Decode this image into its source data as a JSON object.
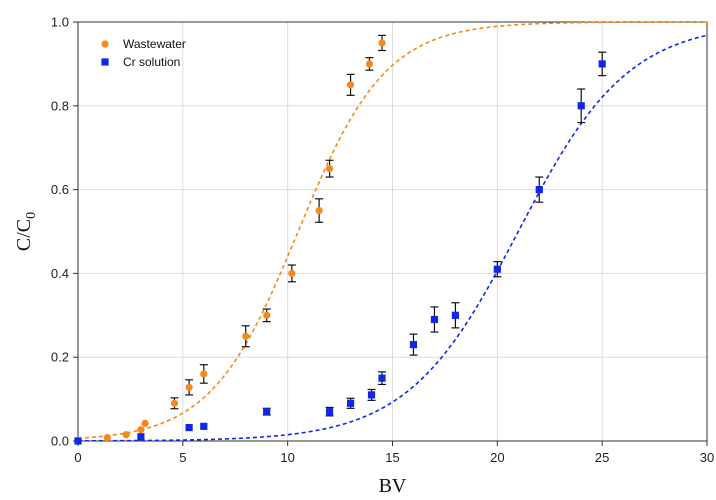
{
  "chart_data": {
    "type": "scatter",
    "title": "",
    "xlabel": "BV",
    "ylabel_main": "C/C",
    "ylabel_sub": "0",
    "xlim": [
      0,
      30
    ],
    "ylim": [
      0,
      1.0
    ],
    "x_ticks": [
      0,
      5,
      10,
      15,
      20,
      25,
      30
    ],
    "x_tick_labels": [
      "0",
      "5",
      "10",
      "15",
      "20",
      "25",
      "30"
    ],
    "y_ticks": [
      0,
      0.2,
      0.4,
      0.6,
      0.8,
      1.0
    ],
    "y_tick_labels": [
      "0.0",
      "0.2",
      "0.4",
      "0.6",
      "0.8",
      "1.0"
    ],
    "grid": true,
    "legend_position": "top-left",
    "series": [
      {
        "name": "Wastewater",
        "color": "#f5891f",
        "marker": "circle",
        "points": [
          {
            "x": 0,
            "y": 0.0,
            "err": 0
          },
          {
            "x": 1.4,
            "y": 0.008,
            "err": 0
          },
          {
            "x": 2.3,
            "y": 0.015,
            "err": 0
          },
          {
            "x": 3.0,
            "y": 0.027,
            "err": 0
          },
          {
            "x": 3.2,
            "y": 0.042,
            "err": 0
          },
          {
            "x": 4.6,
            "y": 0.09,
            "err": 0.013
          },
          {
            "x": 5.3,
            "y": 0.128,
            "err": 0.018
          },
          {
            "x": 6.0,
            "y": 0.16,
            "err": 0.022
          },
          {
            "x": 8.0,
            "y": 0.25,
            "err": 0.025
          },
          {
            "x": 9.0,
            "y": 0.3,
            "err": 0.015
          },
          {
            "x": 10.2,
            "y": 0.4,
            "err": 0.02
          },
          {
            "x": 11.5,
            "y": 0.55,
            "err": 0.028
          },
          {
            "x": 12.0,
            "y": 0.65,
            "err": 0.02
          },
          {
            "x": 13.0,
            "y": 0.85,
            "err": 0.025
          },
          {
            "x": 13.9,
            "y": 0.9,
            "err": 0.015
          },
          {
            "x": 14.5,
            "y": 0.95,
            "err": 0.018
          }
        ],
        "fit": {
          "type": "logistic",
          "x50": 10.5,
          "slope": 0.48,
          "color": "#f5891f"
        }
      },
      {
        "name": "Cr solution",
        "color": "#1226e6",
        "marker": "square",
        "points": [
          {
            "x": 0,
            "y": 0.0,
            "err": 0
          },
          {
            "x": 3.0,
            "y": 0.01,
            "err": 0
          },
          {
            "x": 5.3,
            "y": 0.032,
            "err": 0
          },
          {
            "x": 6.0,
            "y": 0.035,
            "err": 0
          },
          {
            "x": 9.0,
            "y": 0.07,
            "err": 0.008
          },
          {
            "x": 12.0,
            "y": 0.07,
            "err": 0.01
          },
          {
            "x": 13.0,
            "y": 0.09,
            "err": 0.012
          },
          {
            "x": 14.0,
            "y": 0.11,
            "err": 0.013
          },
          {
            "x": 14.5,
            "y": 0.15,
            "err": 0.015
          },
          {
            "x": 16.0,
            "y": 0.23,
            "err": 0.025
          },
          {
            "x": 17.0,
            "y": 0.29,
            "err": 0.03
          },
          {
            "x": 18.0,
            "y": 0.3,
            "err": 0.03
          },
          {
            "x": 20.0,
            "y": 0.41,
            "err": 0.018
          },
          {
            "x": 22.0,
            "y": 0.6,
            "err": 0.03
          },
          {
            "x": 24.0,
            "y": 0.8,
            "err": 0.04
          },
          {
            "x": 25.0,
            "y": 0.9,
            "err": 0.028
          }
        ],
        "fit": {
          "type": "logistic",
          "x50": 21.0,
          "slope": 0.38,
          "color": "#1226e6"
        }
      }
    ]
  }
}
